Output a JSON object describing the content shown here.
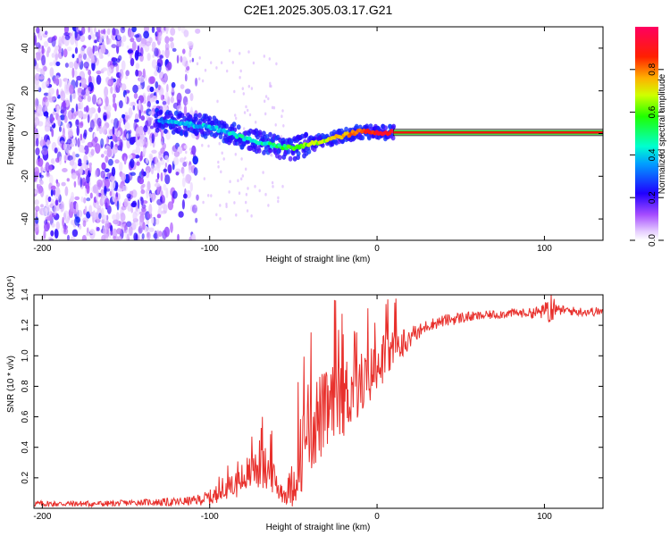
{
  "figure": {
    "title": "C2E1.2025.305.03.17.G21"
  },
  "chart_data": [
    {
      "type": "heatmap",
      "title": "C2E1.2025.305.03.17.G21",
      "xlabel": "Height of straight line (km)",
      "ylabel": "Frequency (Hz)",
      "xlim": [
        -205,
        135
      ],
      "ylim": [
        -50,
        50
      ],
      "xticks": [
        -200,
        -100,
        0,
        100
      ],
      "xtick_labels": [
        "-200",
        "-100",
        "0",
        "100"
      ],
      "yticks": [
        -40,
        -20,
        0,
        20,
        40
      ],
      "ytick_labels": [
        "-40",
        "-20",
        "0",
        "20",
        "40"
      ],
      "colorbar": {
        "label": "Normalized spectral amplitude",
        "range": [
          0,
          1
        ],
        "ticks": [
          0.0,
          0.2,
          0.4,
          0.6,
          0.8
        ],
        "tick_labels": [
          "0.0",
          "0.2",
          "0.4",
          "0.6",
          "0.8"
        ],
        "colormap": [
          "#ffffff",
          "#7b00ff",
          "#0000ff",
          "#00ffff",
          "#00ff00",
          "#ffff00",
          "#ff8000",
          "#ff0000",
          "#ff0080"
        ]
      },
      "noise_region_km": [
        -205,
        -115
      ],
      "tracked_signal": {
        "x": [
          -130,
          -120,
          -110,
          -100,
          -90,
          -80,
          -70,
          -60,
          -50,
          -40,
          -30,
          -20,
          -10,
          0,
          10,
          135
        ],
        "freq_hz": [
          6,
          5,
          4,
          3,
          1,
          -2,
          -4,
          -6,
          -7,
          -5,
          -3,
          -1,
          1,
          0.5,
          0.5,
          0.5
        ],
        "amplitude": [
          0.4,
          0.42,
          0.45,
          0.45,
          0.45,
          0.5,
          0.5,
          0.55,
          0.65,
          0.7,
          0.75,
          0.8,
          0.9,
          0.95,
          1.0,
          1.0
        ]
      }
    },
    {
      "type": "line",
      "xlabel": "Height of straight line (km)",
      "ylabel": "SNR (10 * v/v)",
      "y_scale_label": "(x10⁴)",
      "xlim": [
        -205,
        135
      ],
      "ylim": [
        0,
        1.4
      ],
      "xticks": [
        -200,
        -100,
        0,
        100
      ],
      "xtick_labels": [
        "-200",
        "-100",
        "0",
        "100"
      ],
      "yticks": [
        0.2,
        0.4,
        0.6,
        0.8,
        1.0,
        1.2,
        1.4
      ],
      "ytick_labels": [
        "0.2",
        "0.4",
        "0.6",
        "0.8",
        "1.0",
        "1.2",
        "1.4"
      ],
      "series": [
        {
          "name": "SNR",
          "color": "#e8302c",
          "x": [
            -205,
            -180,
            -160,
            -140,
            -120,
            -110,
            -100,
            -90,
            -80,
            -75,
            -70,
            -65,
            -60,
            -55,
            -50,
            -45,
            -40,
            -35,
            -30,
            -25,
            -20,
            -15,
            -10,
            -5,
            0,
            5,
            10,
            15,
            20,
            25,
            30,
            40,
            50,
            60,
            70,
            80,
            90,
            100,
            103,
            105,
            107,
            110,
            120,
            135
          ],
          "base": [
            0.03,
            0.03,
            0.03,
            0.04,
            0.04,
            0.05,
            0.07,
            0.1,
            0.16,
            0.2,
            0.24,
            0.2,
            0.12,
            0.07,
            0.12,
            0.3,
            0.45,
            0.5,
            0.55,
            0.6,
            0.65,
            0.7,
            0.75,
            0.8,
            0.9,
            0.95,
            1.0,
            1.05,
            1.1,
            1.15,
            1.2,
            1.23,
            1.25,
            1.26,
            1.27,
            1.28,
            1.28,
            1.29,
            1.3,
            1.3,
            1.29,
            1.3,
            1.29,
            1.29
          ],
          "spread": [
            0.02,
            0.02,
            0.02,
            0.02,
            0.03,
            0.03,
            0.05,
            0.12,
            0.2,
            0.25,
            0.3,
            0.25,
            0.2,
            0.1,
            0.3,
            0.5,
            0.6,
            0.55,
            0.5,
            0.5,
            0.5,
            0.45,
            0.4,
            0.35,
            0.3,
            0.3,
            0.25,
            0.2,
            0.1,
            0.06,
            0.04,
            0.04,
            0.04,
            0.03,
            0.03,
            0.03,
            0.03,
            0.05,
            0.25,
            0.2,
            0.05,
            0.03,
            0.03,
            0.03
          ],
          "peak_max": [
            0.66,
            1.33,
            1.36,
            1.33,
            1.41
          ]
        }
      ]
    }
  ]
}
